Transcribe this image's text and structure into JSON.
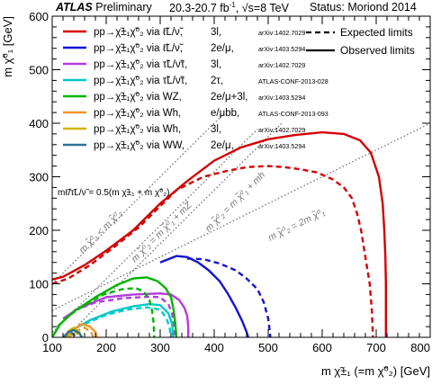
{
  "header": {
    "experiment": "ATLAS",
    "label": "Preliminary",
    "lumi": "20.3-20.7 fb",
    "lumi_sup": "-1",
    "energy": ", √s=8 TeV",
    "status": "Status: Moriond 2014"
  },
  "chart_data": {
    "type": "line",
    "xlabel": "m χ̃±₁ (=m χ̃⁰₂) [GeV]",
    "ylabel": "m χ̃⁰₁ [GeV]",
    "xlim": [
      100,
      800
    ],
    "ylim": [
      0,
      600
    ],
    "xticks": [
      100,
      200,
      300,
      400,
      500,
      600,
      700,
      800
    ],
    "yticks": [
      0,
      100,
      200,
      300,
      400,
      500,
      600
    ],
    "grid": false,
    "legend_style": [
      {
        "label": "Expected limits",
        "style": "dashed"
      },
      {
        "label": "Observed limits",
        "style": "solid"
      }
    ],
    "series": [
      {
        "process": "pp→χ̃±₁χ̃⁰₂ via ℓ̃L/ν̃,",
        "channel": "3l,",
        "ref": "arXiv:1402.7029",
        "color": "#d40000",
        "observed": [
          [
            100,
            108
          ],
          [
            120,
            113
          ],
          [
            160,
            135
          ],
          [
            200,
            162
          ],
          [
            250,
            200
          ],
          [
            300,
            250
          ],
          [
            350,
            292
          ],
          [
            400,
            330
          ],
          [
            450,
            355
          ],
          [
            500,
            370
          ],
          [
            550,
            378
          ],
          [
            600,
            383
          ],
          [
            640,
            380
          ],
          [
            670,
            368
          ],
          [
            690,
            345
          ],
          [
            705,
            300
          ],
          [
            712,
            250
          ],
          [
            715,
            200
          ],
          [
            717,
            150
          ],
          [
            718,
            100
          ],
          [
            718,
            50
          ],
          [
            718,
            0
          ]
        ],
        "expected": [
          [
            100,
            100
          ],
          [
            130,
            110
          ],
          [
            170,
            135
          ],
          [
            210,
            165
          ],
          [
            260,
            205
          ],
          [
            300,
            245
          ],
          [
            330,
            275
          ],
          [
            350,
            285
          ],
          [
            380,
            300
          ],
          [
            420,
            310
          ],
          [
            460,
            318
          ],
          [
            500,
            320
          ],
          [
            530,
            318
          ],
          [
            560,
            314
          ],
          [
            590,
            308
          ],
          [
            620,
            295
          ],
          [
            640,
            280
          ],
          [
            655,
            260
          ],
          [
            665,
            230
          ],
          [
            672,
            200
          ],
          [
            680,
            150
          ],
          [
            688,
            100
          ],
          [
            692,
            50
          ],
          [
            694,
            0
          ]
        ]
      },
      {
        "process": "pp→χ̃±₁χ̃⁰₂ via ℓ̃L/ν̃,",
        "channel": "2e/μ,",
        "ref": "arXiv:1403.5294",
        "color": "#1414d2",
        "observed": [
          [
            300,
            140
          ],
          [
            330,
            152
          ],
          [
            350,
            150
          ],
          [
            370,
            140
          ],
          [
            390,
            125
          ],
          [
            410,
            105
          ],
          [
            425,
            82
          ],
          [
            440,
            55
          ],
          [
            452,
            30
          ],
          [
            460,
            10
          ],
          [
            463,
            0
          ]
        ],
        "expected": [
          [
            350,
            147
          ],
          [
            380,
            146
          ],
          [
            410,
            138
          ],
          [
            440,
            125
          ],
          [
            460,
            110
          ],
          [
            480,
            90
          ],
          [
            492,
            65
          ],
          [
            500,
            35
          ],
          [
            503,
            10
          ],
          [
            504,
            0
          ]
        ]
      },
      {
        "process": "pp→χ̃±₁χ̃⁰₂ via τ̃L/ν̃τ,",
        "channel": "3l,",
        "ref": "arXiv:1402.7029",
        "color": "#b43cdc",
        "observed": [
          [
            120,
            35
          ],
          [
            150,
            55
          ],
          [
            200,
            75
          ],
          [
            250,
            80
          ],
          [
            300,
            82
          ],
          [
            320,
            80
          ],
          [
            335,
            70
          ],
          [
            345,
            55
          ],
          [
            350,
            40
          ],
          [
            352,
            20
          ],
          [
            352,
            0
          ]
        ],
        "expected": [
          [
            140,
            50
          ],
          [
            180,
            65
          ],
          [
            230,
            73
          ],
          [
            280,
            76
          ],
          [
            300,
            75
          ],
          [
            315,
            62
          ],
          [
            322,
            45
          ],
          [
            325,
            20
          ],
          [
            326,
            0
          ]
        ]
      },
      {
        "process": "pp→χ̃±₁χ̃⁰₂ via τ̃L/ν̃τ,",
        "channel": "2τ,",
        "ref": "ATLAS-CONF-2013-028",
        "color": "#00c8c8",
        "observed": [
          [
            140,
            15
          ],
          [
            170,
            32
          ],
          [
            210,
            48
          ],
          [
            250,
            58
          ],
          [
            280,
            62
          ],
          [
            300,
            60
          ],
          [
            315,
            45
          ],
          [
            322,
            25
          ],
          [
            324,
            0
          ]
        ],
        "expected": [
          [
            160,
            25
          ],
          [
            200,
            42
          ],
          [
            240,
            52
          ],
          [
            275,
            56
          ],
          [
            300,
            52
          ],
          [
            312,
            35
          ],
          [
            318,
            15
          ],
          [
            319,
            0
          ]
        ]
      },
      {
        "process": "pp→χ̃±₁χ̃⁰₂ via WZ,",
        "channel": "2e/μ+3l,",
        "ref": "arXiv:1403.5294",
        "color": "#00b400",
        "observed": [
          [
            100,
            0
          ],
          [
            115,
            25
          ],
          [
            140,
            48
          ],
          [
            180,
            75
          ],
          [
            220,
            98
          ],
          [
            250,
            110
          ],
          [
            275,
            112
          ],
          [
            295,
            105
          ],
          [
            310,
            92
          ],
          [
            320,
            75
          ],
          [
            325,
            50
          ],
          [
            328,
            25
          ],
          [
            330,
            0
          ]
        ],
        "expected": [
          [
            110,
            20
          ],
          [
            130,
            40
          ],
          [
            160,
            60
          ],
          [
            195,
            80
          ],
          [
            230,
            90
          ],
          [
            255,
            92
          ],
          [
            270,
            85
          ],
          [
            280,
            70
          ],
          [
            285,
            50
          ],
          [
            288,
            25
          ],
          [
            289,
            0
          ]
        ]
      },
      {
        "process": "pp→χ̃±₁χ̃⁰₂ via Wh,",
        "channel": "e/μbb,",
        "ref": "ATLAS-CONF-2013-093",
        "color": "#f0962a",
        "observed": [
          [
            125,
            0
          ],
          [
            140,
            15
          ],
          [
            155,
            25
          ],
          [
            170,
            20
          ],
          [
            180,
            10
          ],
          [
            183,
            0
          ]
        ],
        "expected": [
          [
            130,
            0
          ],
          [
            145,
            12
          ],
          [
            160,
            18
          ],
          [
            172,
            10
          ],
          [
            176,
            0
          ]
        ]
      },
      {
        "process": "pp→χ̃±₁χ̃⁰₂ via Wh,",
        "channel": "3l,",
        "ref": "arXiv:1402.7029",
        "color": "#d2b400",
        "observed": [
          [
            125,
            0
          ],
          [
            130,
            12
          ],
          [
            140,
            18
          ],
          [
            150,
            10
          ],
          [
            155,
            0
          ]
        ],
        "expected": [
          [
            128,
            0
          ],
          [
            134,
            8
          ],
          [
            142,
            11
          ],
          [
            148,
            5
          ],
          [
            150,
            0
          ]
        ]
      },
      {
        "process": "pp→χ̃±₁χ̃⁰₂ via WW,",
        "channel": "2e/μ,",
        "ref": "arXiv:1403.5294",
        "color": "#2c7296",
        "observed": [
          [
            120,
            0
          ],
          [
            130,
            10
          ],
          [
            140,
            14
          ],
          [
            150,
            8
          ],
          [
            155,
            0
          ]
        ],
        "expected": [
          [
            120,
            0
          ],
          [
            128,
            6
          ],
          [
            136,
            8
          ],
          [
            142,
            3
          ],
          [
            144,
            0
          ]
        ]
      }
    ],
    "annotations": [
      {
        "text": "mℓ̃/τ̃L/ν̃ = 0.5(m χ̃±₁ + m χ̃⁰₂)"
      },
      {
        "text": "m χ̃⁰₁ < m χ̃⁰₂"
      },
      {
        "text": "m χ̃⁰₂ = m χ̃⁰₁ + mZ"
      },
      {
        "text": "m χ̃⁰₂ = m χ̃⁰₁ + mh"
      },
      {
        "text": "m χ̃⁰₂ = 2m χ̃⁰₁"
      }
    ],
    "kinematic_lines": [
      {
        "name": "diagonal",
        "points": [
          [
            100,
            100
          ],
          [
            418,
            418
          ]
        ]
      },
      {
        "name": "mZ",
        "points": [
          [
            91,
            0
          ],
          [
            480,
            389
          ]
        ]
      },
      {
        "name": "mh",
        "points": [
          [
            125,
            0
          ],
          [
            525,
            400
          ]
        ]
      },
      {
        "name": "2m",
        "points": [
          [
            100,
            50
          ],
          [
            800,
            400
          ]
        ]
      }
    ]
  }
}
